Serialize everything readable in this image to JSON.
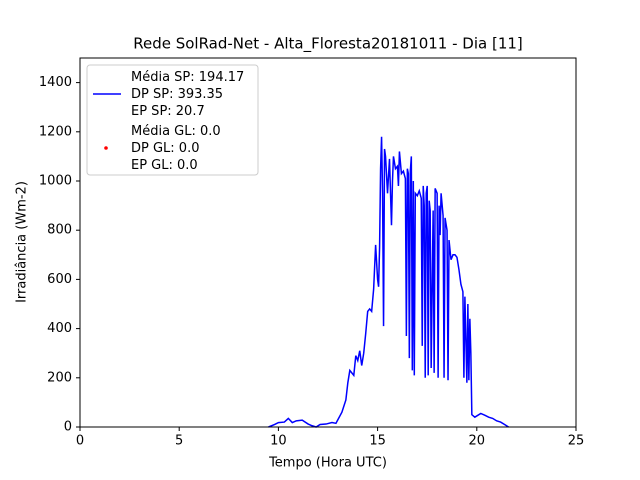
{
  "chart_data": {
    "type": "line",
    "title": "Rede SolRad-Net - Alta_Floresta20181011 - Dia [11]",
    "x_label": "Tempo (Hora UTC)",
    "y_label": "Irradiância (Wm-2)",
    "xlim": [
      0,
      25
    ],
    "xticks": [
      0,
      5,
      10,
      15,
      20,
      25
    ],
    "ylim": [
      0,
      1500
    ],
    "yticks": [
      0,
      200,
      400,
      600,
      800,
      1000,
      1200,
      1400
    ],
    "legend": "upper left",
    "series": [
      {
        "name": "Média SP: 194.17\nDP SP: 393.35\nEP SP: 20.7",
        "color": "#0000ff",
        "marker": "line",
        "x": [
          9.5,
          9.8,
          10.0,
          10.3,
          10.5,
          10.7,
          10.9,
          11.2,
          11.5,
          11.7,
          11.9,
          12.1,
          12.4,
          12.7,
          12.9,
          13.0,
          13.2,
          13.4,
          13.5,
          13.6,
          13.8,
          13.9,
          14.0,
          14.1,
          14.2,
          14.3,
          14.4,
          14.5,
          14.6,
          14.7,
          14.8,
          14.9,
          15.0,
          15.05,
          15.1,
          15.15,
          15.2,
          15.25,
          15.3,
          15.35,
          15.4,
          15.5,
          15.6,
          15.7,
          15.75,
          15.8,
          15.9,
          16.0,
          16.05,
          16.1,
          16.2,
          16.3,
          16.4,
          16.45,
          16.5,
          16.55,
          16.6,
          16.65,
          16.7,
          16.75,
          16.8,
          16.85,
          16.9,
          17.0,
          17.1,
          17.2,
          17.25,
          17.3,
          17.35,
          17.4,
          17.45,
          17.5,
          17.55,
          17.6,
          17.65,
          17.7,
          17.8,
          17.85,
          17.9,
          18.0,
          18.05,
          18.1,
          18.15,
          18.2,
          18.3,
          18.35,
          18.4,
          18.5,
          18.55,
          18.6,
          18.7,
          18.8,
          18.9,
          19.0,
          19.1,
          19.2,
          19.3,
          19.35,
          19.4,
          19.5,
          19.55,
          19.6,
          19.65,
          19.7,
          19.75,
          19.9,
          20.0,
          20.2,
          20.4,
          20.6,
          20.8,
          21.0,
          21.2,
          21.4,
          21.6
        ],
        "values": [
          0,
          10,
          18,
          20,
          35,
          18,
          25,
          28,
          12,
          5,
          0,
          10,
          12,
          18,
          15,
          30,
          60,
          110,
          180,
          230,
          210,
          290,
          270,
          310,
          250,
          300,
          380,
          470,
          480,
          470,
          560,
          740,
          600,
          570,
          730,
          1050,
          1180,
          950,
          410,
          1130,
          1100,
          950,
          1090,
          820,
          1000,
          1100,
          1050,
          1060,
          980,
          1120,
          1030,
          1040,
          1010,
          370,
          1050,
          1030,
          280,
          1040,
          1100,
          230,
          1000,
          210,
          950,
          940,
          960,
          930,
          330,
          980,
          900,
          200,
          950,
          980,
          210,
          920,
          880,
          240,
          880,
          220,
          970,
          950,
          200,
          900,
          780,
          950,
          860,
          200,
          850,
          800,
          190,
          760,
          680,
          700,
          700,
          690,
          640,
          580,
          550,
          200,
          530,
          180,
          500,
          190,
          440,
          300,
          50,
          40,
          45,
          55,
          48,
          40,
          35,
          25,
          20,
          10,
          0
        ]
      },
      {
        "name": "Média GL: 0.0\nDP GL: 0.0\nEP GL: 0.0",
        "color": "#ff0000",
        "marker": "dot",
        "x": [],
        "values": []
      }
    ]
  }
}
